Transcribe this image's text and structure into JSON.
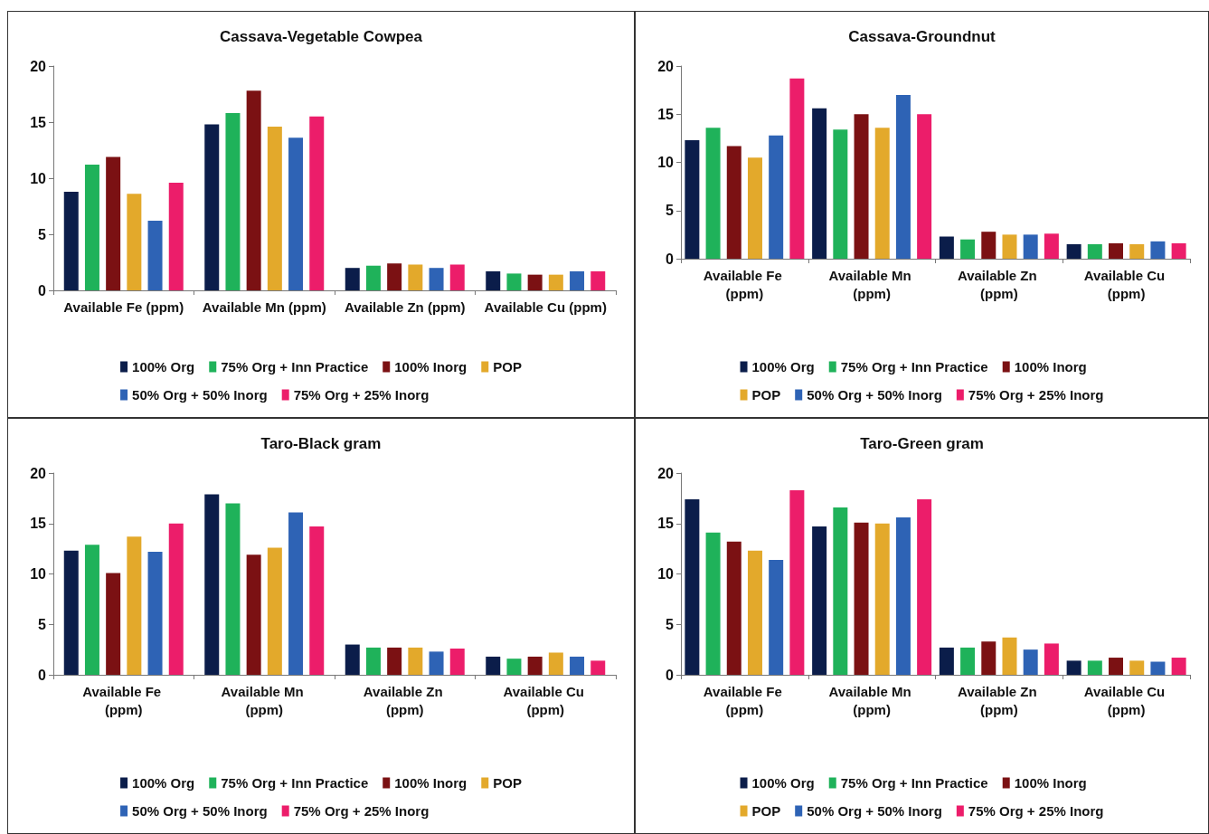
{
  "chart_data": [
    {
      "type": "bar",
      "title": "Cassava-Vegetable Cowpea",
      "categories": [
        "Available Fe (ppm)",
        "Available Mn (ppm)",
        "Available Zn (ppm)",
        "Available Cu (ppm)"
      ],
      "ylim": [
        0,
        20
      ],
      "yticks": [
        0,
        5,
        10,
        15,
        20
      ],
      "grid": false,
      "legend": "bottom",
      "series": [
        {
          "name": "100% Org",
          "color": "#0b1d4a",
          "values": [
            8.8,
            14.8,
            2.0,
            1.7
          ]
        },
        {
          "name": "75% Org + Inn Practice",
          "color": "#1fb25a",
          "values": [
            11.2,
            15.8,
            2.2,
            1.5
          ]
        },
        {
          "name": "100% Inorg",
          "color": "#7b1113",
          "values": [
            11.9,
            17.8,
            2.4,
            1.4
          ]
        },
        {
          "name": "POP",
          "color": "#e3a92b",
          "values": [
            8.6,
            14.6,
            2.3,
            1.4
          ]
        },
        {
          "name": "50% Org + 50% Inorg",
          "color": "#2e63b5",
          "values": [
            6.2,
            13.6,
            2.0,
            1.7
          ]
        },
        {
          "name": "75% Org + 25% Inorg",
          "color": "#ec1d6a",
          "values": [
            9.6,
            15.5,
            2.3,
            1.7
          ]
        }
      ]
    },
    {
      "type": "bar",
      "title": "Cassava-Groundnut",
      "categories": [
        "Available Fe (ppm)",
        "Available Mn (ppm)",
        "Available Zn (ppm)",
        "Available Cu (ppm)"
      ],
      "ylim": [
        0,
        20
      ],
      "yticks": [
        0,
        5,
        10,
        15,
        20
      ],
      "grid": false,
      "legend": "bottom",
      "series": [
        {
          "name": "100% Org",
          "color": "#0b1d4a",
          "values": [
            12.3,
            15.6,
            2.3,
            1.5
          ]
        },
        {
          "name": "75% Org + Inn Practice",
          "color": "#1fb25a",
          "values": [
            13.6,
            13.4,
            2.0,
            1.5
          ]
        },
        {
          "name": "100% Inorg",
          "color": "#7b1113",
          "values": [
            11.7,
            15.0,
            2.8,
            1.6
          ]
        },
        {
          "name": "POP",
          "color": "#e3a92b",
          "values": [
            10.5,
            13.6,
            2.5,
            1.5
          ]
        },
        {
          "name": "50% Org + 50% Inorg",
          "color": "#2e63b5",
          "values": [
            12.8,
            17.0,
            2.5,
            1.8
          ]
        },
        {
          "name": "75% Org + 25% Inorg",
          "color": "#ec1d6a",
          "values": [
            18.7,
            15.0,
            2.6,
            1.6
          ]
        }
      ]
    },
    {
      "type": "bar",
      "title": "Taro-Black gram",
      "categories": [
        "Available Fe (ppm)",
        "Available Mn (ppm)",
        "Available Zn (ppm)",
        "Available Cu (ppm)"
      ],
      "ylim": [
        0,
        20
      ],
      "yticks": [
        0,
        5,
        10,
        15,
        20
      ],
      "grid": false,
      "legend": "bottom",
      "series": [
        {
          "name": "100% Org",
          "color": "#0b1d4a",
          "values": [
            12.3,
            17.9,
            3.0,
            1.8
          ]
        },
        {
          "name": "75% Org + Inn Practice",
          "color": "#1fb25a",
          "values": [
            12.9,
            17.0,
            2.7,
            1.6
          ]
        },
        {
          "name": "100% Inorg",
          "color": "#7b1113",
          "values": [
            10.1,
            11.9,
            2.7,
            1.8
          ]
        },
        {
          "name": "POP",
          "color": "#e3a92b",
          "values": [
            13.7,
            12.6,
            2.7,
            2.2
          ]
        },
        {
          "name": "50% Org + 50% Inorg",
          "color": "#2e63b5",
          "values": [
            12.2,
            16.1,
            2.3,
            1.8
          ]
        },
        {
          "name": "75% Org + 25% Inorg",
          "color": "#ec1d6a",
          "values": [
            15.0,
            14.7,
            2.6,
            1.4
          ]
        }
      ]
    },
    {
      "type": "bar",
      "title": "Taro-Green gram",
      "categories": [
        "Available Fe (ppm)",
        "Available Mn (ppm)",
        "Available Zn (ppm)",
        "Available Cu (ppm)"
      ],
      "ylim": [
        0,
        20
      ],
      "yticks": [
        0,
        5,
        10,
        15,
        20
      ],
      "grid": false,
      "legend": "bottom",
      "series": [
        {
          "name": "100% Org",
          "color": "#0b1d4a",
          "values": [
            17.4,
            14.7,
            2.7,
            1.4
          ]
        },
        {
          "name": "75% Org + Inn Practice",
          "color": "#1fb25a",
          "values": [
            14.1,
            16.6,
            2.7,
            1.4
          ]
        },
        {
          "name": "100% Inorg",
          "color": "#7b1113",
          "values": [
            13.2,
            15.1,
            3.3,
            1.7
          ]
        },
        {
          "name": "POP",
          "color": "#e3a92b",
          "values": [
            12.3,
            15.0,
            3.7,
            1.4
          ]
        },
        {
          "name": "50% Org + 50% Inorg",
          "color": "#2e63b5",
          "values": [
            11.4,
            15.6,
            2.5,
            1.3
          ]
        },
        {
          "name": "75% Org + 25% Inorg",
          "color": "#ec1d6a",
          "values": [
            18.3,
            17.4,
            3.1,
            1.7
          ]
        }
      ]
    }
  ]
}
